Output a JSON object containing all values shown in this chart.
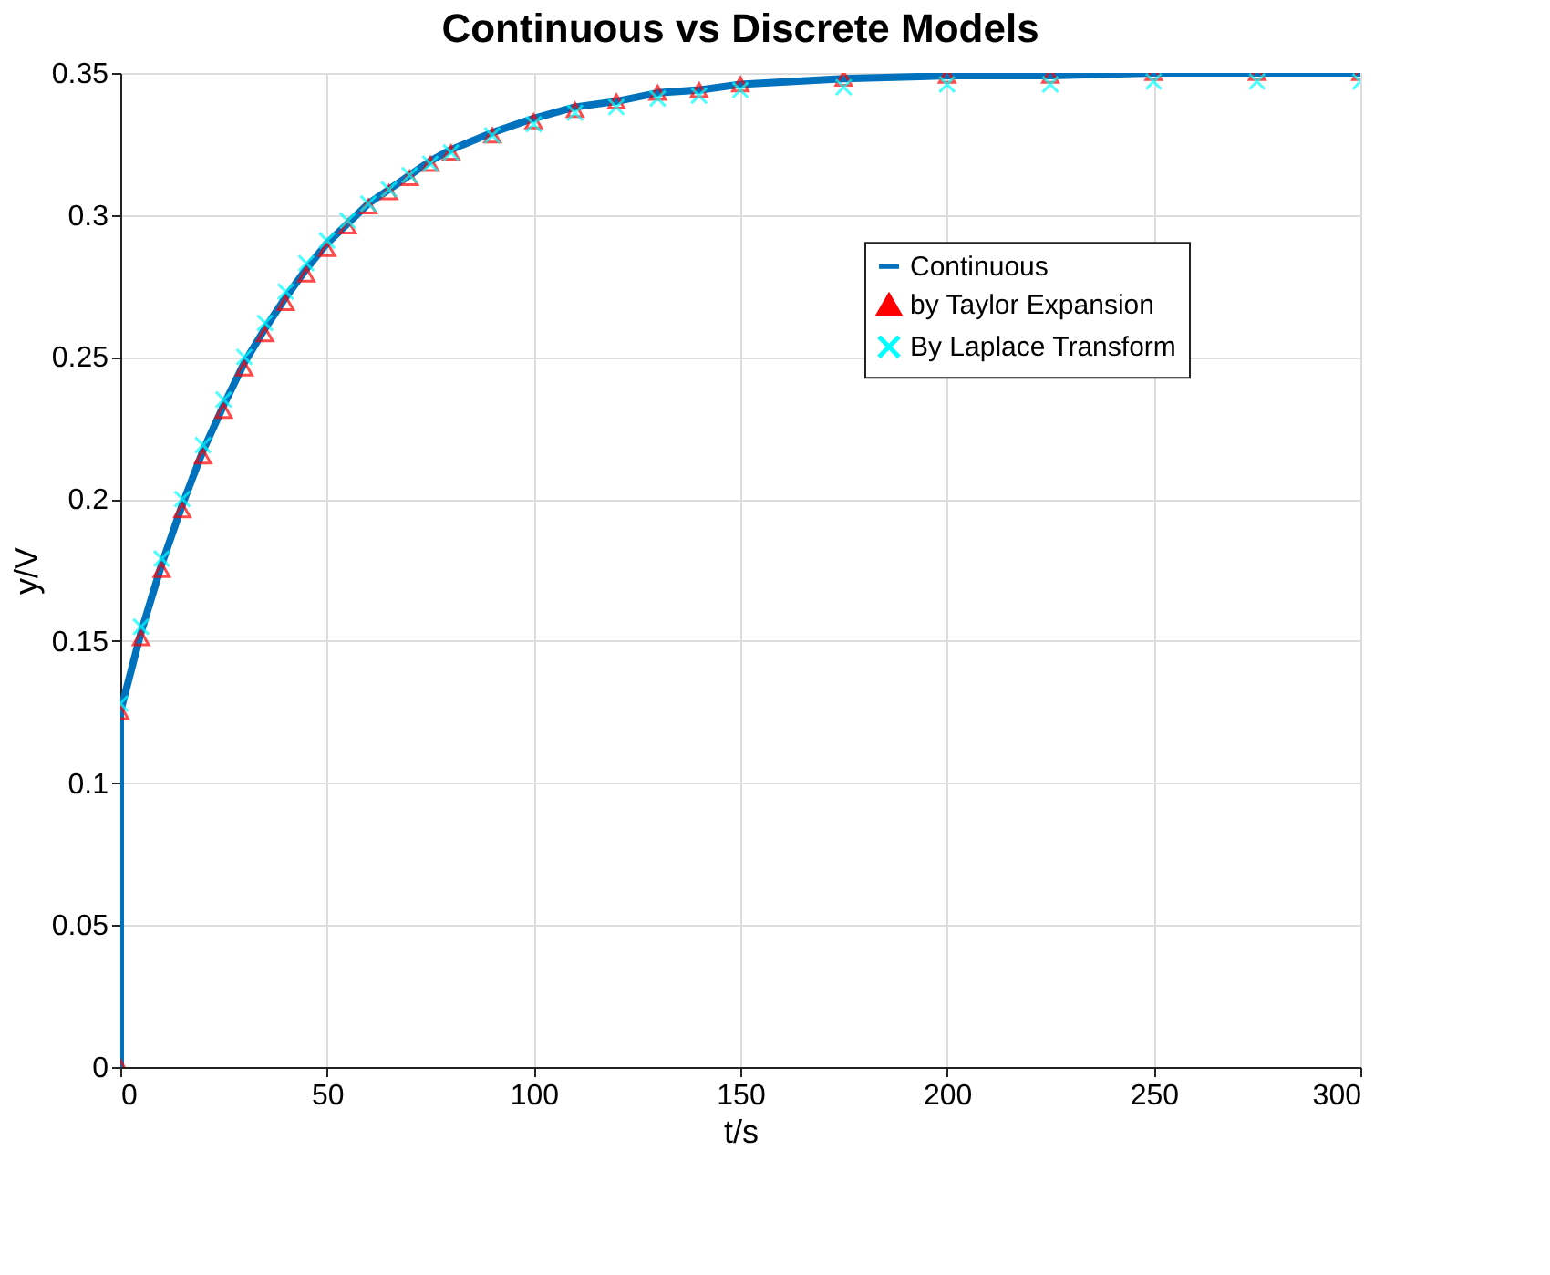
{
  "chart_data": {
    "type": "line",
    "title": "Continuous vs Discrete Models",
    "xlabel": "t/s",
    "ylabel": "y/V",
    "xlim": [
      0,
      300
    ],
    "xticks": [
      0,
      50,
      100,
      150,
      200,
      250,
      300
    ],
    "ylim": [
      0,
      0.35
    ],
    "yticks": [
      0,
      0.05,
      0.1,
      0.15,
      0.2,
      0.25,
      0.3,
      0.35
    ],
    "grid": true,
    "legend": "top right",
    "series": [
      {
        "name": "Continuous",
        "color": "#0072bd",
        "line_style": "solid",
        "marker": "none",
        "x": [
          0,
          0,
          5,
          10,
          15,
          20,
          25,
          30,
          35,
          40,
          45,
          50,
          55,
          60,
          65,
          70,
          75,
          80,
          90,
          100,
          110,
          120,
          130,
          140,
          150,
          175,
          200,
          225,
          250,
          275,
          300
        ],
        "values": [
          0,
          0.125,
          0.153,
          0.177,
          0.198,
          0.217,
          0.233,
          0.248,
          0.26,
          0.271,
          0.281,
          0.29,
          0.297,
          0.304,
          0.309,
          0.314,
          0.319,
          0.323,
          0.329,
          0.334,
          0.338,
          0.34,
          0.343,
          0.344,
          0.346,
          0.348,
          0.349,
          0.349,
          0.35,
          0.35,
          0.35
        ]
      },
      {
        "name": "by Taylor Expansion",
        "type": "scatter",
        "color": "#ff0000",
        "marker": "triangle",
        "x": [
          0,
          0,
          5,
          10,
          15,
          20,
          25,
          30,
          35,
          40,
          45,
          50,
          55,
          60,
          65,
          70,
          75,
          80,
          90,
          100,
          110,
          120,
          130,
          140,
          150,
          175,
          200,
          225,
          250,
          275,
          300
        ],
        "values": [
          0,
          0.125,
          0.151,
          0.175,
          0.196,
          0.215,
          0.231,
          0.246,
          0.258,
          0.269,
          0.279,
          0.288,
          0.296,
          0.303,
          0.308,
          0.313,
          0.318,
          0.322,
          0.328,
          0.333,
          0.337,
          0.34,
          0.343,
          0.344,
          0.346,
          0.348,
          0.349,
          0.349,
          0.35,
          0.35,
          0.35
        ]
      },
      {
        "name": "By Laplace Transform",
        "type": "scatter",
        "color": "#00ffff",
        "marker": "cross",
        "x": [
          0,
          5,
          10,
          15,
          20,
          25,
          30,
          35,
          40,
          45,
          50,
          55,
          60,
          65,
          70,
          75,
          80,
          90,
          100,
          110,
          120,
          130,
          140,
          150,
          175,
          200,
          225,
          250,
          275,
          300
        ],
        "values": [
          0.128,
          0.155,
          0.179,
          0.2,
          0.219,
          0.235,
          0.25,
          0.262,
          0.273,
          0.283,
          0.291,
          0.298,
          0.304,
          0.309,
          0.314,
          0.318,
          0.322,
          0.328,
          0.332,
          0.336,
          0.338,
          0.341,
          0.342,
          0.344,
          0.345,
          0.346,
          0.346,
          0.347,
          0.347,
          0.347
        ]
      }
    ]
  }
}
